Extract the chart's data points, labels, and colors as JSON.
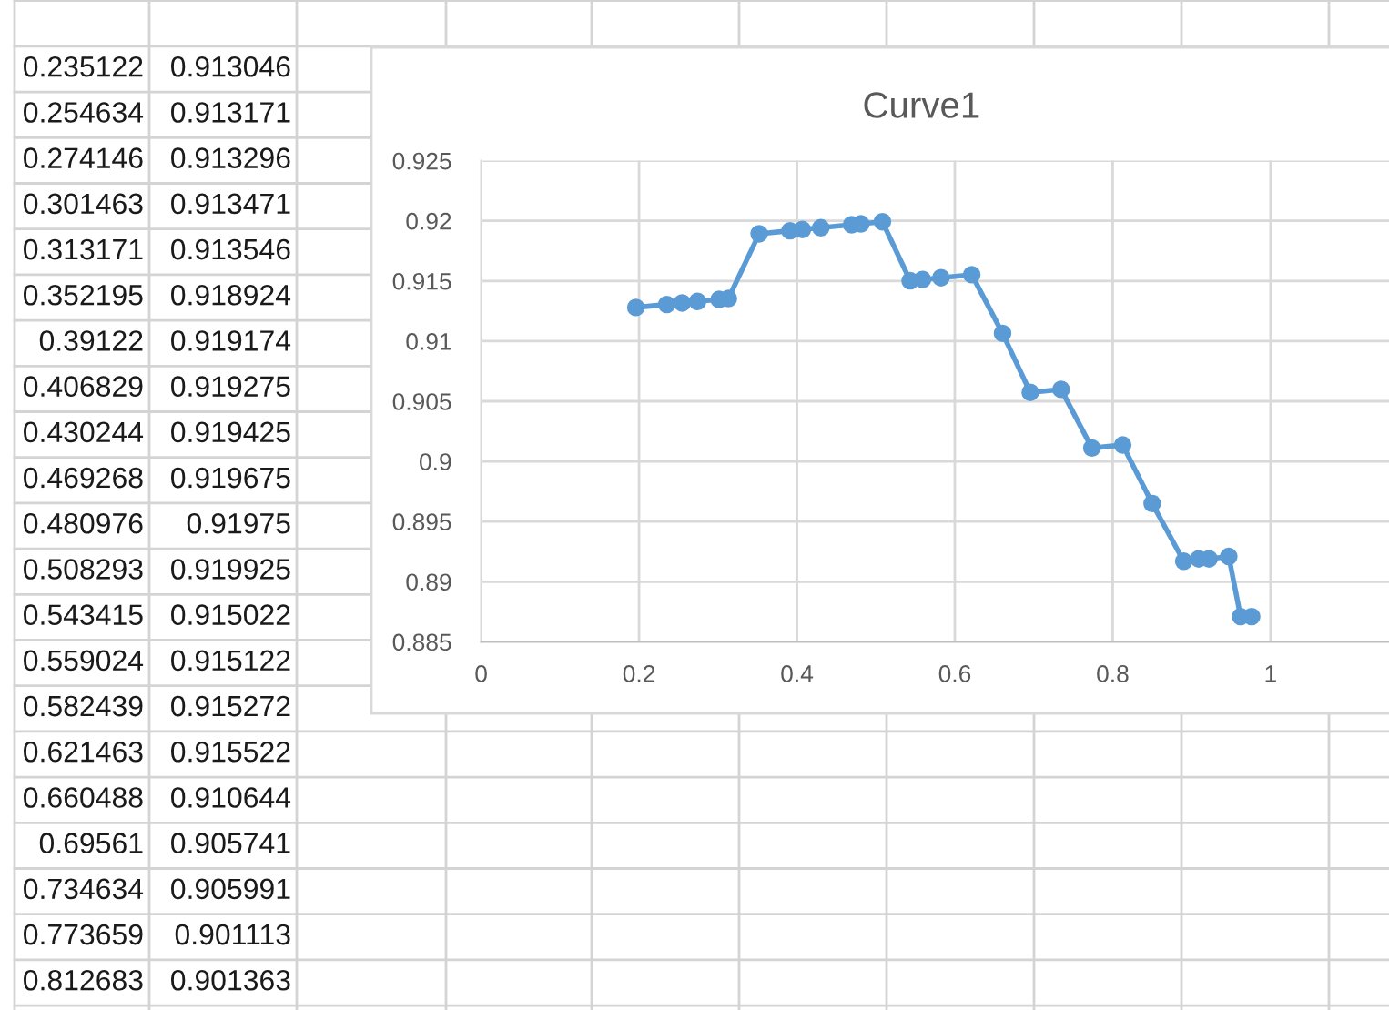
{
  "chart_data": [
    {
      "type": "other",
      "annotations": [
        "0.235122",
        "0.913046",
        "0.254634",
        "0.913171",
        "0.274146",
        "0.913296",
        "0.301463",
        "0.913471",
        "0.313171",
        "0.913546",
        "0.352195",
        "0.918924",
        "0.39122",
        "0.919174",
        "0.406829",
        "0.919275",
        "0.430244",
        "0.919425",
        "0.469268",
        "0.919675",
        "0.480976",
        "0.91975",
        "0.508293",
        "0.919925",
        "0.543415",
        "0.915022",
        "0.559024",
        "0.915122",
        "0.582439",
        "0.915272",
        "0.621463",
        "0.915522",
        "0.660488",
        "0.910644",
        "0.69561",
        "0.905741",
        "0.734634",
        "0.905991",
        "0.773659",
        "0.901113",
        "0.812683",
        "0.901363"
      ]
    },
    {
      "type": "line",
      "title": "Curve1",
      "x": [
        0.196,
        0.235122,
        0.254634,
        0.274146,
        0.301463,
        0.313171,
        0.352195,
        0.39122,
        0.406829,
        0.430244,
        0.469268,
        0.480976,
        0.508293,
        0.543415,
        0.559024,
        0.582439,
        0.621463,
        0.660488,
        0.69561,
        0.734634,
        0.773659,
        0.812683,
        0.85,
        0.89,
        0.909,
        0.922,
        0.947,
        0.962,
        0.976
      ],
      "series": [
        {
          "color": "#5b9bd5",
          "values": [
            0.9128,
            0.913046,
            0.913171,
            0.913296,
            0.913471,
            0.913546,
            0.918924,
            0.919174,
            0.919275,
            0.919425,
            0.919675,
            0.91975,
            0.919925,
            0.915022,
            0.915122,
            0.915272,
            0.915522,
            0.910644,
            0.905741,
            0.905991,
            0.901113,
            0.901363,
            0.8965,
            0.8917,
            0.8919,
            0.8919,
            0.8921,
            0.8871,
            0.8871
          ]
        }
      ],
      "xlim": [
        0,
        1.15
      ],
      "xticks": [
        0,
        0.2,
        0.4,
        0.6,
        0.8,
        1
      ],
      "ylim": [
        0.885,
        0.925
      ],
      "yticks": [
        0.885,
        0.89,
        0.895,
        0.9,
        0.905,
        0.91,
        0.915,
        0.92,
        0.925
      ],
      "grid": true,
      "marker": "circle",
      "line_style": "solid"
    }
  ]
}
